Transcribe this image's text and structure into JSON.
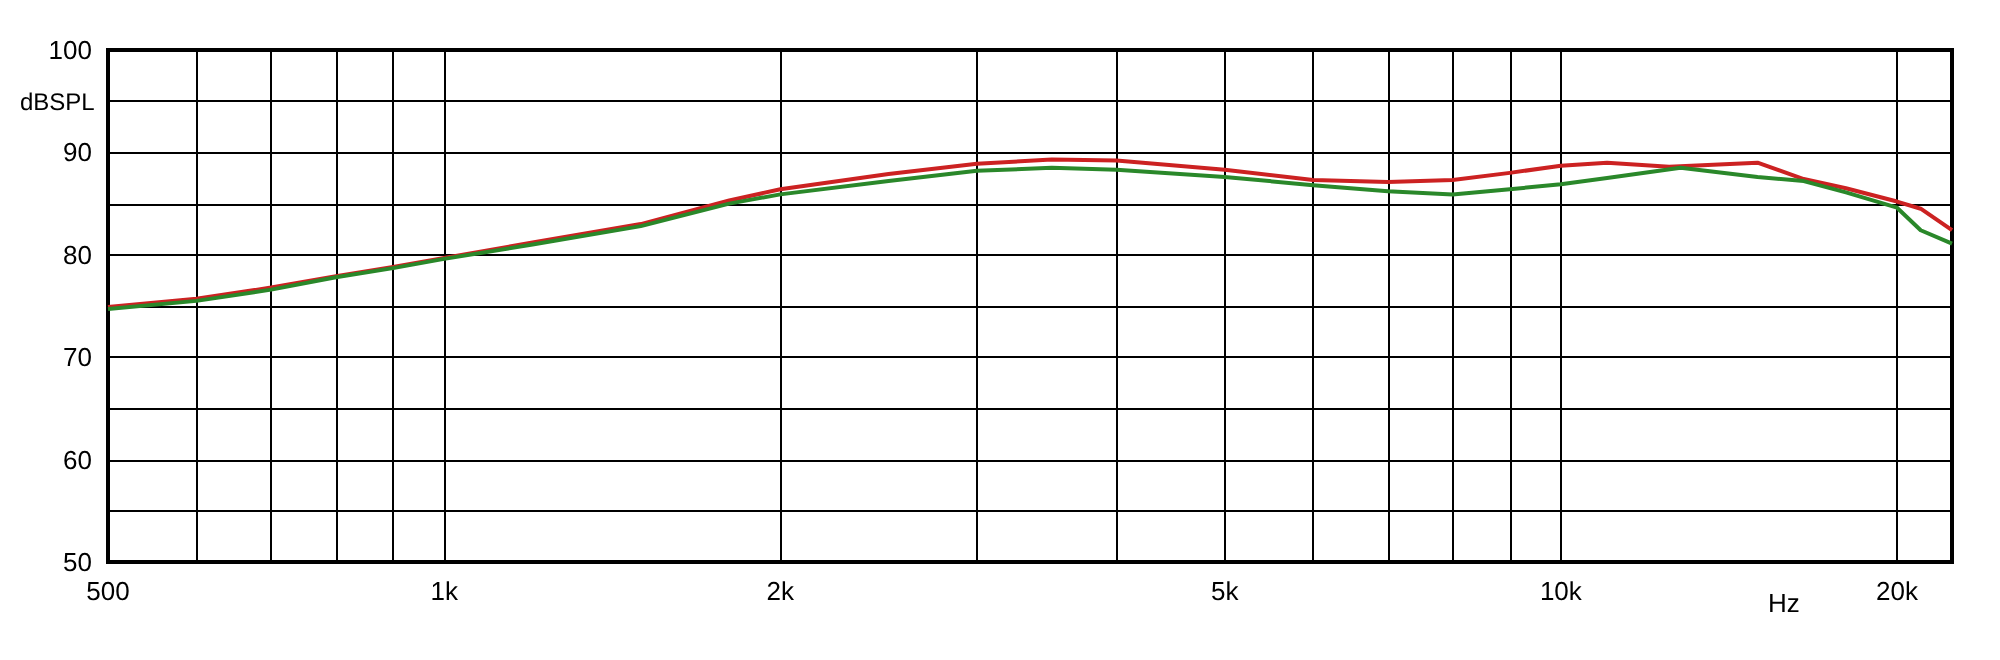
{
  "chart_data": {
    "type": "line",
    "xlabel": "Hz",
    "ylabel": "dBSPL",
    "log": "x",
    "grid": true,
    "marker": "none",
    "line_style": "solid",
    "xlim": [
      500,
      22400
    ],
    "ylim": [
      50,
      100
    ],
    "xticks": [
      500,
      {
        "value": 600,
        "label": null
      },
      {
        "value": 700,
        "label": null
      },
      {
        "value": 800,
        "label": null
      },
      {
        "value": 900,
        "label": null
      },
      {
        "value": 1000,
        "label": "1k"
      },
      {
        "value": 2000,
        "label": "2k"
      },
      {
        "value": 3000,
        "label": null
      },
      {
        "value": 4000,
        "label": null
      },
      {
        "value": 5000,
        "label": "5k"
      },
      {
        "value": 6000,
        "label": null
      },
      {
        "value": 7000,
        "label": null
      },
      {
        "value": 8000,
        "label": null
      },
      {
        "value": 9000,
        "label": null
      },
      {
        "value": 10000,
        "label": "10k"
      },
      {
        "value": 20000,
        "label": "20k"
      }
    ],
    "yticks": [
      50,
      {
        "value": 55,
        "label": null
      },
      60,
      {
        "value": 65,
        "label": null
      },
      70,
      {
        "value": 75,
        "label": null
      },
      80,
      {
        "value": 85,
        "label": null
      },
      90,
      {
        "value": 95,
        "label": null
      },
      100
    ],
    "series": [
      {
        "color": "#cc2222",
        "x": [
          500,
          600,
          700,
          800,
          900,
          1000,
          1200,
          1500,
          1800,
          2000,
          2500,
          3000,
          3500,
          4000,
          5000,
          6000,
          7000,
          8000,
          9000,
          10000,
          11000,
          12500,
          15000,
          16500,
          18000,
          20000,
          21000,
          22400
        ],
        "values": [
          74.9,
          75.7,
          76.8,
          77.9,
          78.8,
          79.7,
          81.2,
          83.0,
          85.3,
          86.4,
          87.9,
          88.9,
          89.3,
          89.2,
          88.3,
          87.3,
          87.1,
          87.3,
          88.0,
          88.7,
          89.0,
          88.6,
          89.0,
          87.4,
          86.5,
          85.2,
          84.5,
          82.4
        ]
      },
      {
        "color": "#2a882a",
        "x": [
          500,
          600,
          700,
          800,
          900,
          1000,
          1200,
          1500,
          1800,
          2000,
          2500,
          3000,
          3500,
          4000,
          5000,
          6000,
          7000,
          8000,
          9000,
          10000,
          11000,
          12800,
          15000,
          16500,
          18000,
          20000,
          21000,
          22400
        ],
        "values": [
          74.7,
          75.5,
          76.6,
          77.8,
          78.7,
          79.6,
          81.0,
          82.8,
          85.0,
          85.9,
          87.2,
          88.2,
          88.5,
          88.3,
          87.6,
          86.8,
          86.2,
          85.9,
          86.4,
          86.9,
          87.5,
          88.5,
          87.6,
          87.2,
          86.1,
          84.6,
          82.4,
          81.1
        ]
      }
    ]
  }
}
